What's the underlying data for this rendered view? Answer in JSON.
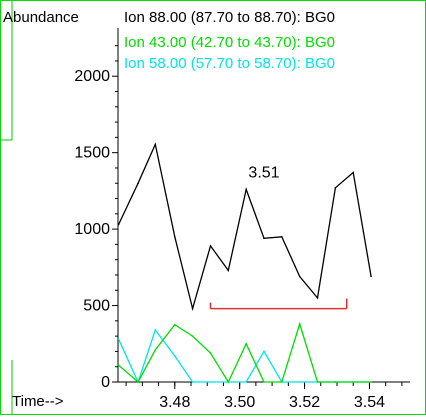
{
  "chart_data": {
    "type": "line",
    "ylabel": "Abundance",
    "xlabel": "Time-->",
    "xlim": [
      3.4625,
      3.5525
    ],
    "ylim": [
      0,
      2250
    ],
    "y_ticks": [
      0,
      500,
      1000,
      1500,
      2000
    ],
    "y_tick_labels": [
      "0",
      "500",
      "1000",
      "1500",
      "2000"
    ],
    "x_ticks": [
      3.48,
      3.5,
      3.52,
      3.54
    ],
    "x_tick_labels": [
      "3.48",
      "3.50",
      "3.52",
      "3.54"
    ],
    "legend_placement": "top",
    "series": [
      {
        "name": "Ion  88.00 (87.70 to 88.70): BG0",
        "color": "#000000",
        "x": [
          3.4627,
          3.4687,
          3.474,
          3.48,
          3.4855,
          3.491,
          3.4965,
          3.502,
          3.5075,
          3.513,
          3.5185,
          3.524,
          3.5295,
          3.535,
          3.5405,
          3.546,
          3.5515
        ],
        "values": [
          1030,
          1300,
          1555,
          950,
          480,
          890,
          730,
          1260,
          940,
          950,
          690,
          550,
          1270,
          1370,
          690,
          null,
          null
        ]
      },
      {
        "name": "Ion  43.00 (42.70 to 43.70): BG0",
        "color": "#00dd00",
        "x": [
          3.4627,
          3.4687,
          3.474,
          3.48,
          3.4855,
          3.491,
          3.4965,
          3.502,
          3.5075,
          3.513,
          3.5185,
          3.524,
          3.5295,
          3.535,
          3.5405,
          3.546,
          3.5515
        ],
        "values": [
          110,
          0,
          210,
          375,
          300,
          190,
          0,
          250,
          0,
          0,
          380,
          0,
          0,
          0,
          0,
          null,
          null
        ]
      },
      {
        "name": "Ion  58.00 (57.70 to 58.70): BG0",
        "color": "#00e5e5",
        "x": [
          3.4627,
          3.4687,
          3.474,
          3.48,
          3.4855,
          3.491,
          3.4965,
          3.502,
          3.5075,
          3.513,
          3.5185,
          3.524,
          3.5295,
          3.535,
          3.5405,
          3.546,
          3.5515
        ],
        "values": [
          280,
          0,
          340,
          170,
          0,
          0,
          0,
          0,
          200,
          0,
          0,
          0,
          0,
          0,
          0,
          null,
          null
        ]
      }
    ],
    "integration_baseline": {
      "color": "#e03030",
      "x_start": 3.491,
      "x_end": 3.533,
      "value": 480
    },
    "peak_label": {
      "text": "3.51",
      "x": 3.5075,
      "y": 1260
    }
  }
}
